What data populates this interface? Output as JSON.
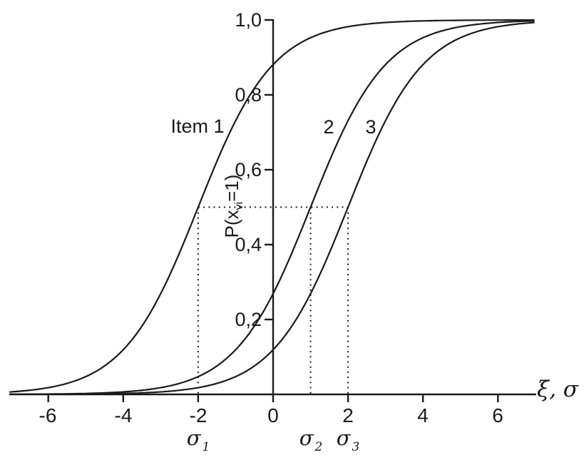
{
  "colors": {
    "line": "#1a1a1a",
    "text": "#1a1a1a",
    "background": "#ffffff"
  },
  "axes": {
    "x_label": "ξ, σ",
    "x_tick_labels": [
      "-6",
      "-4",
      "-2",
      "0",
      "2",
      "4",
      "6"
    ],
    "y_tick_labels": [
      "1,0",
      "0,8",
      "0,6",
      "0,4",
      "0,2"
    ],
    "y_label_parts": {
      "pre": "P(x",
      "sub": "vi",
      "post": "=1)"
    }
  },
  "curve_labels": {
    "item1": "Item 1",
    "item2": "2",
    "item3": "3"
  },
  "sigma_labels": [
    {
      "base": "σ",
      "sub": "1"
    },
    {
      "base": "σ",
      "sub": "2"
    },
    {
      "base": "σ",
      "sub": "3"
    }
  ],
  "chart_data": {
    "type": "line",
    "title": "",
    "xlabel": "ξ, σ",
    "ylabel": "P(x_vi=1)",
    "xlim": [
      -7,
      7
    ],
    "ylim": [
      0,
      1
    ],
    "grid": false,
    "legend": "none",
    "x_ticks": [
      -6,
      -4,
      -2,
      0,
      2,
      4,
      6
    ],
    "x_tick_labels": [
      "-6",
      "-4",
      "-2",
      "0",
      "2",
      "4",
      "6"
    ],
    "y_ticks": [
      0.2,
      0.4,
      0.6,
      0.8,
      1.0
    ],
    "y_tick_labels": [
      "0,2",
      "0,4",
      "0,6",
      "0,8",
      "1,0"
    ],
    "model": "P(x_vi=1 | xi) = 1 / (1 + exp(-(xi - sigma_i)))",
    "discrimination": 1,
    "x": [
      -6,
      -4,
      -2,
      0,
      2,
      4,
      6
    ],
    "series": [
      {
        "name": "Item 1",
        "sigma": -2,
        "values": [
          0.018,
          0.119,
          0.5,
          0.881,
          0.982,
          0.998,
          1.0
        ]
      },
      {
        "name": "2",
        "sigma": 1,
        "values": [
          0.001,
          0.007,
          0.047,
          0.269,
          0.731,
          0.953,
          0.993
        ]
      },
      {
        "name": "3",
        "sigma": 2,
        "values": [
          0.0003,
          0.002,
          0.018,
          0.119,
          0.5,
          0.881,
          0.982
        ]
      }
    ],
    "guides": {
      "p": 0.5,
      "horizontal_span": [
        -2,
        2
      ],
      "vertical_x": [
        -2,
        1,
        2
      ]
    },
    "sigma_markers": [
      {
        "label": "σ1",
        "x": -2
      },
      {
        "label": "σ2",
        "x": 1
      },
      {
        "label": "σ3",
        "x": 2
      }
    ]
  }
}
